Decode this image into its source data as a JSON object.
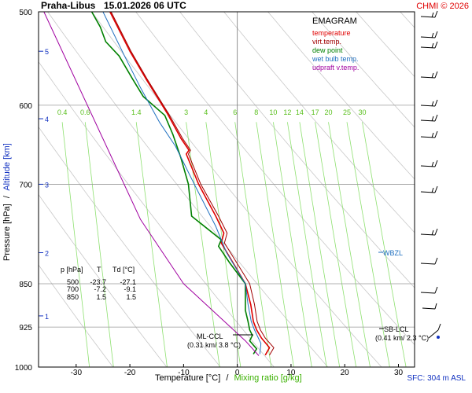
{
  "header": {
    "station": "Praha-Libus",
    "datetime": "15.01.2026 06 UTC",
    "credit": "CHMI © 2026"
  },
  "legend": {
    "title": "EMAGRAM",
    "items": [
      {
        "label": "temperature",
        "color": "#e00000"
      },
      {
        "label": "virt.temp.",
        "color": "#a00000"
      },
      {
        "label": "dew point",
        "color": "#008000"
      },
      {
        "label": "wet bulb temp.",
        "color": "#2070c0"
      },
      {
        "label": "udpraft v.temp.",
        "color": "#a000a0"
      }
    ]
  },
  "axes": {
    "ylabel_left": "Pressure [hPa]",
    "ylabel_sep": "/",
    "ylabel_right": "Altitude [km]",
    "xlabel_left": "Temperature [°C]",
    "xlabel_sep": "/",
    "xlabel_right": "Mixing ratio [g/kg]"
  },
  "table": {
    "header": [
      "p [hPa]",
      "T",
      "Td [°C]"
    ],
    "rows": [
      [
        "500",
        "-23.7",
        "-27.1"
      ],
      [
        "700",
        "-7.2",
        "-9.1"
      ],
      [
        "850",
        "1.5",
        "1.5"
      ]
    ]
  },
  "annotations": {
    "wbzl": "WBZL",
    "ml_ccl_1": "ML-CCL",
    "ml_ccl_2": "(0.31 km/ 3.8 °C)",
    "sb_lcl_1": "SB-LCL",
    "sb_lcl_2": "(0.41 km/ 2.3 °C)",
    "sfc": "SFC: 304 m ASL"
  },
  "chart_data": {
    "type": "line",
    "title": "EMAGRAM",
    "xlabel": "Temperature [°C] / Mixing ratio [g/kg]",
    "ylabel": "Pressure [hPa] / Altitude [km]",
    "xlim": [
      -37,
      33
    ],
    "ylim": [
      1000,
      500
    ],
    "y_scale": "log",
    "x_ticks": [
      -30,
      -20,
      -10,
      0,
      10,
      20,
      30
    ],
    "y_ticks": [
      500,
      600,
      700,
      850,
      925,
      1000
    ],
    "altitude_ticks_km": [
      {
        "km": "1",
        "p": 905
      },
      {
        "km": "2",
        "p": 800
      },
      {
        "km": "3",
        "p": 700
      },
      {
        "km": "4",
        "p": 616
      },
      {
        "km": "5",
        "p": 540
      }
    ],
    "mixing_ratio_labels": [
      "0.4",
      "0.6",
      "1.4",
      "3",
      "4",
      "6",
      "8",
      "10",
      "12",
      "14",
      "17",
      "20",
      "25",
      "30"
    ],
    "grid": true,
    "series": [
      {
        "name": "temperature",
        "color": "#e00000",
        "points": [
          [
            5.2,
            977
          ],
          [
            6.0,
            963
          ],
          [
            4.5,
            945
          ],
          [
            3.6,
            930
          ],
          [
            3.0,
            915
          ],
          [
            2.5,
            885
          ],
          [
            1.5,
            850
          ],
          [
            -0.5,
            820
          ],
          [
            -3.0,
            785
          ],
          [
            -2.5,
            770
          ],
          [
            -4.0,
            745
          ],
          [
            -7.2,
            700
          ],
          [
            -9.5,
            660
          ],
          [
            -9.0,
            655
          ],
          [
            -10.5,
            640
          ],
          [
            -13.0,
            610
          ],
          [
            -17.0,
            570
          ],
          [
            -20.0,
            540
          ],
          [
            -23.7,
            500
          ]
        ]
      },
      {
        "name": "virt.temp.",
        "color": "#a00000",
        "points": [
          [
            6.0,
            977
          ],
          [
            6.8,
            963
          ],
          [
            5.2,
            945
          ],
          [
            4.3,
            930
          ],
          [
            3.7,
            915
          ],
          [
            3.2,
            885
          ],
          [
            2.3,
            850
          ],
          [
            0.2,
            820
          ],
          [
            -2.4,
            785
          ],
          [
            -1.9,
            770
          ],
          [
            -3.5,
            745
          ],
          [
            -6.8,
            700
          ],
          [
            -9.1,
            660
          ],
          [
            -8.7,
            655
          ],
          [
            -10.2,
            640
          ],
          [
            -12.8,
            610
          ],
          [
            -16.8,
            570
          ],
          [
            -19.8,
            540
          ],
          [
            -23.5,
            500
          ]
        ]
      },
      {
        "name": "dew point",
        "color": "#008000",
        "points": [
          [
            3.0,
            975
          ],
          [
            3.6,
            965
          ],
          [
            2.3,
            950
          ],
          [
            2.8,
            940
          ],
          [
            2.3,
            930
          ],
          [
            2.0,
            915
          ],
          [
            1.5,
            895
          ],
          [
            1.5,
            850
          ],
          [
            -1.5,
            815
          ],
          [
            -3.5,
            790
          ],
          [
            -3.0,
            780
          ],
          [
            -8.5,
            745
          ],
          [
            -9.1,
            700
          ],
          [
            -10.5,
            665
          ],
          [
            -12.0,
            635
          ],
          [
            -13.5,
            612
          ],
          [
            -17.5,
            590
          ],
          [
            -19.5,
            570
          ],
          [
            -22.0,
            545
          ],
          [
            -24.5,
            530
          ],
          [
            -25.5,
            515
          ],
          [
            -27.1,
            500
          ]
        ]
      },
      {
        "name": "wet bulb temp.",
        "color": "#2070c0",
        "points": [
          [
            4.2,
            975
          ],
          [
            4.4,
            955
          ],
          [
            3.2,
            930
          ],
          [
            2.6,
            915
          ],
          [
            2.0,
            885
          ],
          [
            1.5,
            850
          ],
          [
            -2.0,
            800
          ],
          [
            -4.0,
            760
          ],
          [
            -8.0,
            700
          ],
          [
            -11.5,
            650
          ],
          [
            -14.5,
            620
          ],
          [
            -18.0,
            580
          ],
          [
            -21.0,
            545
          ],
          [
            -25.0,
            500
          ]
        ]
      },
      {
        "name": "udpraft v.temp.",
        "color": "#a000a0",
        "points": [
          [
            4.0,
            978
          ],
          [
            1.5,
            950
          ],
          [
            -10.0,
            850
          ],
          [
            -18.0,
            750
          ],
          [
            -36.0,
            500
          ]
        ]
      }
    ]
  }
}
